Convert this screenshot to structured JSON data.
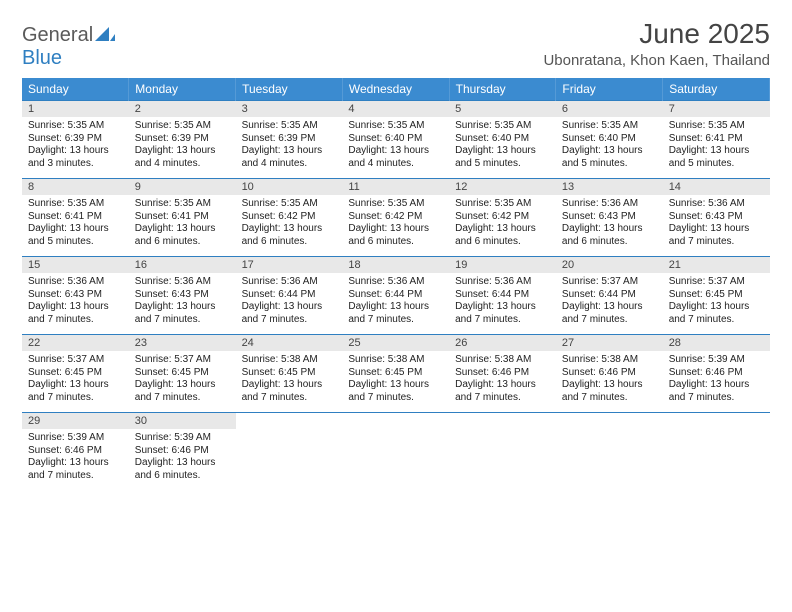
{
  "brand": {
    "general": "General",
    "blue": "Blue"
  },
  "title": "June 2025",
  "location": "Ubonratana, Khon Kaen, Thailand",
  "colors": {
    "header_bg": "#3b8bd0",
    "rule": "#2f7fc1",
    "band": "#e8e8e8",
    "text": "#333333"
  },
  "dow": [
    "Sunday",
    "Monday",
    "Tuesday",
    "Wednesday",
    "Thursday",
    "Friday",
    "Saturday"
  ],
  "weeks": [
    [
      {
        "n": "1",
        "sr": "Sunrise: 5:35 AM",
        "ss": "Sunset: 6:39 PM",
        "dl": "Daylight: 13 hours and 3 minutes."
      },
      {
        "n": "2",
        "sr": "Sunrise: 5:35 AM",
        "ss": "Sunset: 6:39 PM",
        "dl": "Daylight: 13 hours and 4 minutes."
      },
      {
        "n": "3",
        "sr": "Sunrise: 5:35 AM",
        "ss": "Sunset: 6:39 PM",
        "dl": "Daylight: 13 hours and 4 minutes."
      },
      {
        "n": "4",
        "sr": "Sunrise: 5:35 AM",
        "ss": "Sunset: 6:40 PM",
        "dl": "Daylight: 13 hours and 4 minutes."
      },
      {
        "n": "5",
        "sr": "Sunrise: 5:35 AM",
        "ss": "Sunset: 6:40 PM",
        "dl": "Daylight: 13 hours and 5 minutes."
      },
      {
        "n": "6",
        "sr": "Sunrise: 5:35 AM",
        "ss": "Sunset: 6:40 PM",
        "dl": "Daylight: 13 hours and 5 minutes."
      },
      {
        "n": "7",
        "sr": "Sunrise: 5:35 AM",
        "ss": "Sunset: 6:41 PM",
        "dl": "Daylight: 13 hours and 5 minutes."
      }
    ],
    [
      {
        "n": "8",
        "sr": "Sunrise: 5:35 AM",
        "ss": "Sunset: 6:41 PM",
        "dl": "Daylight: 13 hours and 5 minutes."
      },
      {
        "n": "9",
        "sr": "Sunrise: 5:35 AM",
        "ss": "Sunset: 6:41 PM",
        "dl": "Daylight: 13 hours and 6 minutes."
      },
      {
        "n": "10",
        "sr": "Sunrise: 5:35 AM",
        "ss": "Sunset: 6:42 PM",
        "dl": "Daylight: 13 hours and 6 minutes."
      },
      {
        "n": "11",
        "sr": "Sunrise: 5:35 AM",
        "ss": "Sunset: 6:42 PM",
        "dl": "Daylight: 13 hours and 6 minutes."
      },
      {
        "n": "12",
        "sr": "Sunrise: 5:35 AM",
        "ss": "Sunset: 6:42 PM",
        "dl": "Daylight: 13 hours and 6 minutes."
      },
      {
        "n": "13",
        "sr": "Sunrise: 5:36 AM",
        "ss": "Sunset: 6:43 PM",
        "dl": "Daylight: 13 hours and 6 minutes."
      },
      {
        "n": "14",
        "sr": "Sunrise: 5:36 AM",
        "ss": "Sunset: 6:43 PM",
        "dl": "Daylight: 13 hours and 7 minutes."
      }
    ],
    [
      {
        "n": "15",
        "sr": "Sunrise: 5:36 AM",
        "ss": "Sunset: 6:43 PM",
        "dl": "Daylight: 13 hours and 7 minutes."
      },
      {
        "n": "16",
        "sr": "Sunrise: 5:36 AM",
        "ss": "Sunset: 6:43 PM",
        "dl": "Daylight: 13 hours and 7 minutes."
      },
      {
        "n": "17",
        "sr": "Sunrise: 5:36 AM",
        "ss": "Sunset: 6:44 PM",
        "dl": "Daylight: 13 hours and 7 minutes."
      },
      {
        "n": "18",
        "sr": "Sunrise: 5:36 AM",
        "ss": "Sunset: 6:44 PM",
        "dl": "Daylight: 13 hours and 7 minutes."
      },
      {
        "n": "19",
        "sr": "Sunrise: 5:36 AM",
        "ss": "Sunset: 6:44 PM",
        "dl": "Daylight: 13 hours and 7 minutes."
      },
      {
        "n": "20",
        "sr": "Sunrise: 5:37 AM",
        "ss": "Sunset: 6:44 PM",
        "dl": "Daylight: 13 hours and 7 minutes."
      },
      {
        "n": "21",
        "sr": "Sunrise: 5:37 AM",
        "ss": "Sunset: 6:45 PM",
        "dl": "Daylight: 13 hours and 7 minutes."
      }
    ],
    [
      {
        "n": "22",
        "sr": "Sunrise: 5:37 AM",
        "ss": "Sunset: 6:45 PM",
        "dl": "Daylight: 13 hours and 7 minutes."
      },
      {
        "n": "23",
        "sr": "Sunrise: 5:37 AM",
        "ss": "Sunset: 6:45 PM",
        "dl": "Daylight: 13 hours and 7 minutes."
      },
      {
        "n": "24",
        "sr": "Sunrise: 5:38 AM",
        "ss": "Sunset: 6:45 PM",
        "dl": "Daylight: 13 hours and 7 minutes."
      },
      {
        "n": "25",
        "sr": "Sunrise: 5:38 AM",
        "ss": "Sunset: 6:45 PM",
        "dl": "Daylight: 13 hours and 7 minutes."
      },
      {
        "n": "26",
        "sr": "Sunrise: 5:38 AM",
        "ss": "Sunset: 6:46 PM",
        "dl": "Daylight: 13 hours and 7 minutes."
      },
      {
        "n": "27",
        "sr": "Sunrise: 5:38 AM",
        "ss": "Sunset: 6:46 PM",
        "dl": "Daylight: 13 hours and 7 minutes."
      },
      {
        "n": "28",
        "sr": "Sunrise: 5:39 AM",
        "ss": "Sunset: 6:46 PM",
        "dl": "Daylight: 13 hours and 7 minutes."
      }
    ],
    [
      {
        "n": "29",
        "sr": "Sunrise: 5:39 AM",
        "ss": "Sunset: 6:46 PM",
        "dl": "Daylight: 13 hours and 7 minutes."
      },
      {
        "n": "30",
        "sr": "Sunrise: 5:39 AM",
        "ss": "Sunset: 6:46 PM",
        "dl": "Daylight: 13 hours and 6 minutes."
      },
      null,
      null,
      null,
      null,
      null
    ]
  ]
}
